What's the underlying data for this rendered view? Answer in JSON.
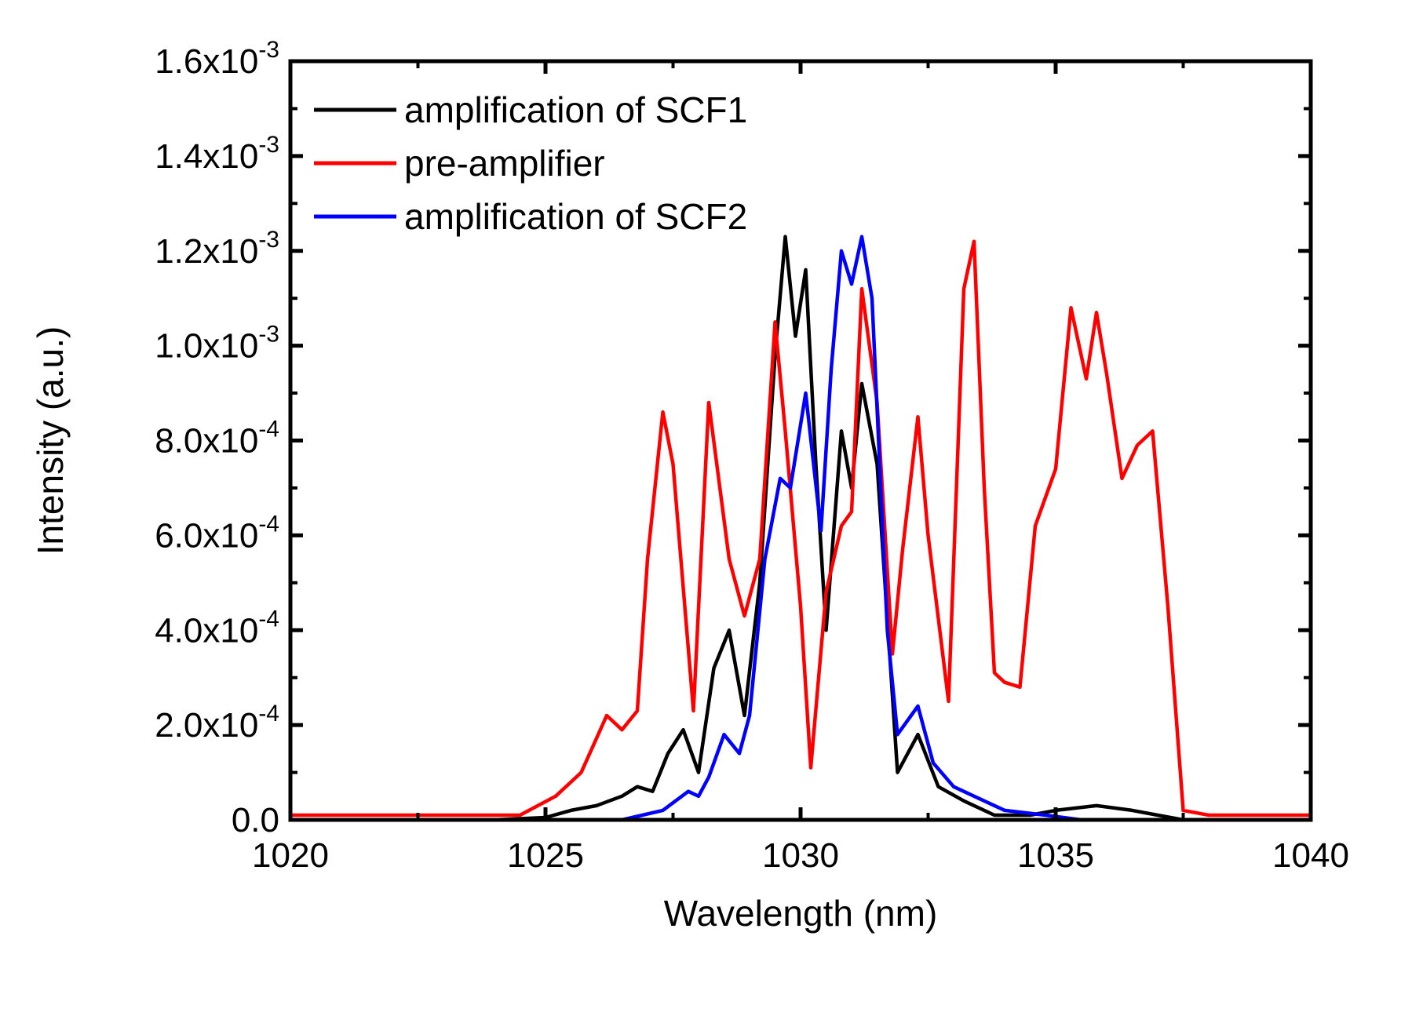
{
  "chart_data": {
    "type": "line",
    "title": "",
    "xlabel": "Wavelength (nm)",
    "ylabel": "Intensity (a.u.)",
    "xlim": [
      1020,
      1040
    ],
    "ylim": [
      0,
      0.0016
    ],
    "grid": false,
    "legend_position": "top-left",
    "x_ticks": [
      1020,
      1025,
      1030,
      1035,
      1040
    ],
    "x_tick_labels": [
      "1020",
      "1025",
      "1030",
      "1035",
      "1040"
    ],
    "y_ticks": [
      {
        "value": 0,
        "mantissa": "0.0",
        "exponent": ""
      },
      {
        "value": 0.0002,
        "mantissa": "2.0x10",
        "exponent": "-4"
      },
      {
        "value": 0.0004,
        "mantissa": "4.0x10",
        "exponent": "-4"
      },
      {
        "value": 0.0006,
        "mantissa": "6.0x10",
        "exponent": "-4"
      },
      {
        "value": 0.0008,
        "mantissa": "8.0x10",
        "exponent": "-4"
      },
      {
        "value": 0.001,
        "mantissa": "1.0x10",
        "exponent": "-3"
      },
      {
        "value": 0.0012,
        "mantissa": "1.2x10",
        "exponent": "-3"
      },
      {
        "value": 0.0014,
        "mantissa": "1.4x10",
        "exponent": "-3"
      },
      {
        "value": 0.0016,
        "mantissa": "1.6x10",
        "exponent": "-3"
      }
    ],
    "series": [
      {
        "name": "amplification of SCF1",
        "color": "#000000",
        "x": [
          1020,
          1024,
          1025,
          1025.5,
          1026,
          1026.5,
          1026.8,
          1027.1,
          1027.4,
          1027.7,
          1028.0,
          1028.3,
          1028.6,
          1028.9,
          1029.2,
          1029.5,
          1029.7,
          1029.9,
          1030.1,
          1030.3,
          1030.5,
          1030.8,
          1031.0,
          1031.2,
          1031.5,
          1031.9,
          1032.3,
          1032.7,
          1033.2,
          1033.8,
          1034.5,
          1035.0,
          1035.8,
          1036.5,
          1037.0,
          1037.5,
          1040
        ],
        "y": [
          0,
          0,
          5e-06,
          2e-05,
          3e-05,
          5e-05,
          7e-05,
          6e-05,
          0.00014,
          0.00019,
          0.0001,
          0.00032,
          0.0004,
          0.00022,
          0.0005,
          0.00098,
          0.00123,
          0.00102,
          0.00116,
          0.00075,
          0.0004,
          0.00082,
          0.0007,
          0.00092,
          0.00075,
          0.0001,
          0.00018,
          7e-05,
          4e-05,
          1e-05,
          1e-05,
          2e-05,
          3e-05,
          2e-05,
          1e-05,
          0,
          0
        ]
      },
      {
        "name": "pre-amplifier",
        "color": "#ff0000",
        "x": [
          1020,
          1024.5,
          1025.2,
          1025.7,
          1026.2,
          1026.5,
          1026.8,
          1027.0,
          1027.3,
          1027.5,
          1027.9,
          1028.2,
          1028.6,
          1028.9,
          1029.2,
          1029.5,
          1029.7,
          1030.0,
          1030.2,
          1030.5,
          1030.8,
          1031.0,
          1031.2,
          1031.5,
          1031.8,
          1032.0,
          1032.3,
          1032.5,
          1032.9,
          1033.2,
          1033.4,
          1033.6,
          1033.8,
          1034.0,
          1034.3,
          1034.6,
          1035.0,
          1035.3,
          1035.6,
          1035.8,
          1036.0,
          1036.3,
          1036.6,
          1036.9,
          1037.2,
          1037.5,
          1038.0,
          1040
        ],
        "y": [
          1e-05,
          1e-05,
          5e-05,
          0.0001,
          0.00022,
          0.00019,
          0.00023,
          0.00055,
          0.00086,
          0.00075,
          0.00023,
          0.00088,
          0.00055,
          0.00043,
          0.00055,
          0.00105,
          0.00082,
          0.00045,
          0.00011,
          0.00048,
          0.00062,
          0.00065,
          0.00112,
          0.00088,
          0.00035,
          0.00057,
          0.00085,
          0.0006,
          0.00025,
          0.00112,
          0.00122,
          0.0007,
          0.00031,
          0.00029,
          0.00028,
          0.00062,
          0.00074,
          0.00108,
          0.00093,
          0.00107,
          0.00094,
          0.00072,
          0.00079,
          0.00082,
          0.00045,
          2e-05,
          1e-05,
          1e-05
        ]
      },
      {
        "name": "amplification of SCF2",
        "color": "#0000ff",
        "x": [
          1020,
          1026.5,
          1027.3,
          1027.8,
          1028.0,
          1028.2,
          1028.5,
          1028.8,
          1029.0,
          1029.3,
          1029.6,
          1029.8,
          1030.1,
          1030.4,
          1030.6,
          1030.8,
          1031.0,
          1031.2,
          1031.4,
          1031.7,
          1031.9,
          1032.3,
          1032.6,
          1033.0,
          1033.4,
          1034.0,
          1034.8,
          1035.5,
          1040
        ],
        "y": [
          0,
          0,
          2e-05,
          6e-05,
          5e-05,
          9e-05,
          0.00018,
          0.00014,
          0.00022,
          0.00055,
          0.00072,
          0.0007,
          0.0009,
          0.00061,
          0.00095,
          0.0012,
          0.00113,
          0.00123,
          0.0011,
          0.0004,
          0.00018,
          0.00024,
          0.00012,
          7e-05,
          5e-05,
          2e-05,
          1e-05,
          0,
          0
        ]
      }
    ]
  }
}
